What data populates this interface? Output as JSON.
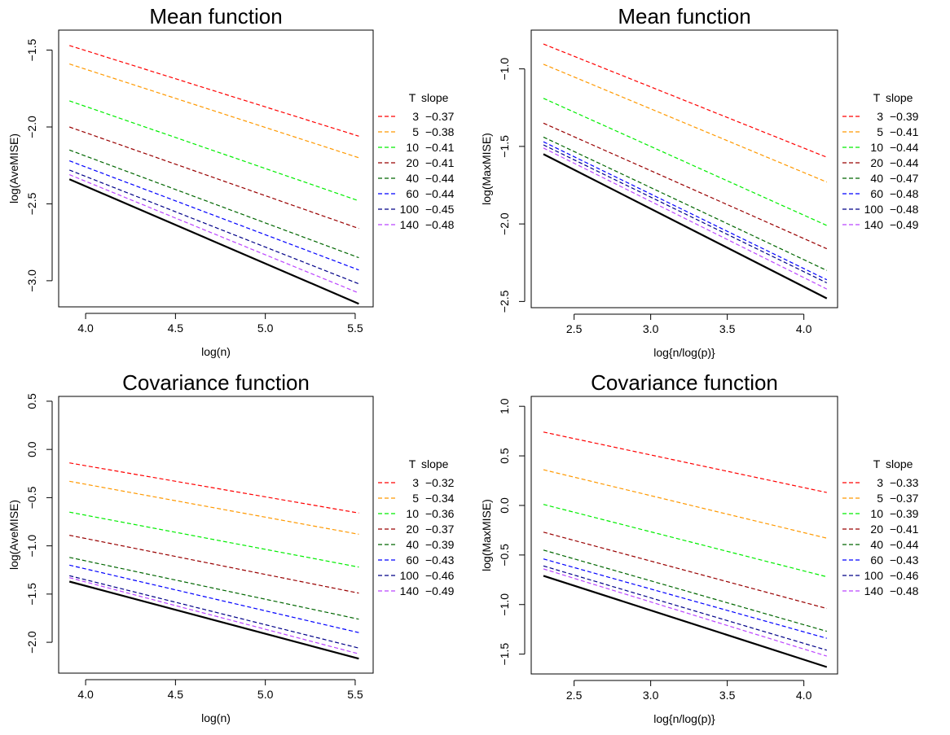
{
  "legend_header": [
    "T",
    "slope"
  ],
  "chart_data": [
    {
      "type": "line",
      "title": "Mean function",
      "xlabel": "log(n)",
      "ylabel": "log(AveMISE)",
      "xlim": [
        3.85,
        5.6
      ],
      "ylim": [
        -3.17,
        -1.37
      ],
      "xticks": [
        4.0,
        4.5,
        5.0,
        5.5
      ],
      "xtick_labels": [
        "4.0",
        "4.5",
        "5.0",
        "5.5"
      ],
      "yticks": [
        -3.0,
        -2.5,
        -2.0,
        -1.5
      ],
      "ytick_labels": [
        "−3.0",
        "−2.5",
        "−2.0",
        "−1.5"
      ],
      "x": [
        3.91,
        5.52
      ],
      "series": [
        {
          "T": "3",
          "slope": "−0.37",
          "color": "#ff0000",
          "values": [
            -1.47,
            -2.06
          ]
        },
        {
          "T": "5",
          "slope": "−0.38",
          "color": "#ff9900",
          "values": [
            -1.59,
            -2.2
          ]
        },
        {
          "T": "10",
          "slope": "−0.41",
          "color": "#00ee00",
          "values": [
            -1.83,
            -2.48
          ]
        },
        {
          "T": "20",
          "slope": "−0.41",
          "color": "#990000",
          "values": [
            -2.0,
            -2.66
          ]
        },
        {
          "T": "40",
          "slope": "−0.44",
          "color": "#006600",
          "values": [
            -2.15,
            -2.85
          ]
        },
        {
          "T": "60",
          "slope": "−0.44",
          "color": "#0000ff",
          "values": [
            -2.22,
            -2.93
          ]
        },
        {
          "T": "100",
          "slope": "−0.45",
          "color": "#000088",
          "values": [
            -2.28,
            -3.02
          ]
        },
        {
          "T": "140",
          "slope": "−0.48",
          "color": "#bb44ff",
          "values": [
            -2.31,
            -3.08
          ]
        }
      ],
      "reference_line": {
        "color": "#000000",
        "values": [
          -2.34,
          -3.15
        ]
      },
      "legend_placement": "right"
    },
    {
      "type": "line",
      "title": "Mean function",
      "xlabel": "log{n/log(p)}",
      "ylabel": "log(MaxMISE)",
      "xlim": [
        2.22,
        4.22
      ],
      "ylim": [
        -2.54,
        -0.75
      ],
      "xticks": [
        2.5,
        3.0,
        3.5,
        4.0
      ],
      "xtick_labels": [
        "2.5",
        "3.0",
        "3.5",
        "4.0"
      ],
      "yticks": [
        -2.5,
        -2.0,
        -1.5,
        -1.0
      ],
      "ytick_labels": [
        "−2.5",
        "−2.0",
        "−1.5",
        "−1.0"
      ],
      "x": [
        2.3,
        4.15
      ],
      "series": [
        {
          "T": "3",
          "slope": "−0.39",
          "color": "#ff0000",
          "values": [
            -0.84,
            -1.57
          ]
        },
        {
          "T": "5",
          "slope": "−0.41",
          "color": "#ff9900",
          "values": [
            -0.97,
            -1.73
          ]
        },
        {
          "T": "10",
          "slope": "−0.44",
          "color": "#00ee00",
          "values": [
            -1.19,
            -2.01
          ]
        },
        {
          "T": "20",
          "slope": "−0.44",
          "color": "#990000",
          "values": [
            -1.35,
            -2.16
          ]
        },
        {
          "T": "40",
          "slope": "−0.47",
          "color": "#006600",
          "values": [
            -1.44,
            -2.3
          ]
        },
        {
          "T": "60",
          "slope": "−0.48",
          "color": "#0000ff",
          "values": [
            -1.47,
            -2.36
          ]
        },
        {
          "T": "100",
          "slope": "−0.48",
          "color": "#000088",
          "values": [
            -1.49,
            -2.38
          ]
        },
        {
          "T": "140",
          "slope": "−0.49",
          "color": "#bb44ff",
          "values": [
            -1.51,
            -2.42
          ]
        }
      ],
      "reference_line": {
        "color": "#000000",
        "values": [
          -1.55,
          -2.48
        ]
      },
      "legend_placement": "right"
    },
    {
      "type": "line",
      "title": "Covariance function",
      "xlabel": "log(n)",
      "ylabel": "log(AveMISE)",
      "xlim": [
        3.85,
        5.6
      ],
      "ylim": [
        -2.32,
        0.55
      ],
      "xticks": [
        4.0,
        4.5,
        5.0,
        5.5
      ],
      "xtick_labels": [
        "4.0",
        "4.5",
        "5.0",
        "5.5"
      ],
      "yticks": [
        -2.0,
        -1.5,
        -1.0,
        -0.5,
        0.0,
        0.5
      ],
      "ytick_labels": [
        "−2.0",
        "−1.5",
        "−1.0",
        "−0.5",
        "0.0",
        "0.5"
      ],
      "x": [
        3.91,
        5.52
      ],
      "series": [
        {
          "T": "3",
          "slope": "−0.32",
          "color": "#ff0000",
          "values": [
            -0.14,
            -0.66
          ]
        },
        {
          "T": "5",
          "slope": "−0.34",
          "color": "#ff9900",
          "values": [
            -0.33,
            -0.88
          ]
        },
        {
          "T": "10",
          "slope": "−0.36",
          "color": "#00ee00",
          "values": [
            -0.65,
            -1.22
          ]
        },
        {
          "T": "20",
          "slope": "−0.37",
          "color": "#990000",
          "values": [
            -0.89,
            -1.49
          ]
        },
        {
          "T": "40",
          "slope": "−0.39",
          "color": "#006600",
          "values": [
            -1.12,
            -1.76
          ]
        },
        {
          "T": "60",
          "slope": "−0.43",
          "color": "#0000ff",
          "values": [
            -1.2,
            -1.9
          ]
        },
        {
          "T": "100",
          "slope": "−0.46",
          "color": "#000088",
          "values": [
            -1.31,
            -2.06
          ]
        },
        {
          "T": "140",
          "slope": "−0.49",
          "color": "#bb44ff",
          "values": [
            -1.33,
            -2.12
          ]
        }
      ],
      "reference_line": {
        "color": "#000000",
        "values": [
          -1.37,
          -2.17
        ]
      },
      "legend_placement": "right"
    },
    {
      "type": "line",
      "title": "Covariance function",
      "xlabel": "log{n/log(p)}",
      "ylabel": "log(MaxMISE)",
      "xlim": [
        2.22,
        4.22
      ],
      "ylim": [
        -1.7,
        1.1
      ],
      "xticks": [
        2.5,
        3.0,
        3.5,
        4.0
      ],
      "xtick_labels": [
        "2.5",
        "3.0",
        "3.5",
        "4.0"
      ],
      "yticks": [
        -1.5,
        -1.0,
        -0.5,
        0.0,
        0.5,
        1.0
      ],
      "ytick_labels": [
        "−1.5",
        "−1.0",
        "−0.5",
        "0.0",
        "0.5",
        "1.0"
      ],
      "x": [
        2.3,
        4.15
      ],
      "series": [
        {
          "T": "3",
          "slope": "−0.33",
          "color": "#ff0000",
          "values": [
            0.74,
            0.13
          ]
        },
        {
          "T": "5",
          "slope": "−0.37",
          "color": "#ff9900",
          "values": [
            0.36,
            -0.33
          ]
        },
        {
          "T": "10",
          "slope": "−0.39",
          "color": "#00ee00",
          "values": [
            0.01,
            -0.72
          ]
        },
        {
          "T": "20",
          "slope": "−0.41",
          "color": "#990000",
          "values": [
            -0.27,
            -1.04
          ]
        },
        {
          "T": "40",
          "slope": "−0.44",
          "color": "#006600",
          "values": [
            -0.45,
            -1.27
          ]
        },
        {
          "T": "60",
          "slope": "−0.43",
          "color": "#0000ff",
          "values": [
            -0.54,
            -1.34
          ]
        },
        {
          "T": "100",
          "slope": "−0.46",
          "color": "#000088",
          "values": [
            -0.61,
            -1.46
          ]
        },
        {
          "T": "140",
          "slope": "−0.48",
          "color": "#bb44ff",
          "values": [
            -0.64,
            -1.52
          ]
        }
      ],
      "reference_line": {
        "color": "#000000",
        "values": [
          -0.71,
          -1.63
        ]
      },
      "legend_placement": "right"
    }
  ]
}
